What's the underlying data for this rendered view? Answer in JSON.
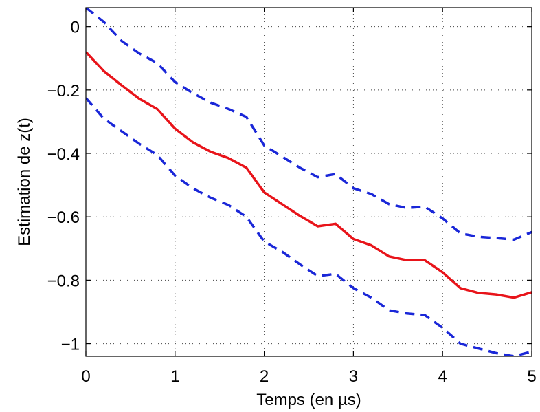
{
  "chart_data": {
    "type": "line",
    "xlabel": "Temps (en µs)",
    "ylabel": "Estimation de z(t)",
    "xlim": [
      0,
      5
    ],
    "ylim": [
      -1.04,
      0.06
    ],
    "grid": true,
    "xticks": [
      0,
      1,
      2,
      3,
      4,
      5
    ],
    "xtick_labels": [
      "0",
      "1",
      "2",
      "3",
      "4",
      "5"
    ],
    "yticks": [
      0,
      -0.2,
      -0.4,
      -0.6,
      -0.8,
      -1
    ],
    "ytick_labels": [
      "0",
      "−0.2",
      "−0.4",
      "−0.6",
      "−0.8",
      "−1"
    ],
    "x": [
      0,
      0.2,
      0.4,
      0.6,
      0.8,
      1.0,
      1.2,
      1.4,
      1.6,
      1.8,
      2.0,
      2.2,
      2.4,
      2.6,
      2.8,
      3.0,
      3.2,
      3.4,
      3.6,
      3.8,
      4.0,
      4.2,
      4.4,
      4.6,
      4.8,
      5.0
    ],
    "series": [
      {
        "style": "solid",
        "color": "#e8141a",
        "values": [
          -0.08,
          -0.14,
          -0.185,
          -0.228,
          -0.26,
          -0.322,
          -0.365,
          -0.395,
          -0.415,
          -0.445,
          -0.523,
          -0.56,
          -0.597,
          -0.63,
          -0.622,
          -0.67,
          -0.69,
          -0.725,
          -0.737,
          -0.737,
          -0.775,
          -0.825,
          -0.84,
          -0.845,
          -0.855,
          -0.838
        ]
      },
      {
        "style": "dashed",
        "color": "#1a27d8",
        "values": [
          0.06,
          0.015,
          -0.045,
          -0.085,
          -0.115,
          -0.175,
          -0.21,
          -0.24,
          -0.26,
          -0.285,
          -0.375,
          -0.41,
          -0.445,
          -0.475,
          -0.465,
          -0.51,
          -0.528,
          -0.56,
          -0.572,
          -0.568,
          -0.605,
          -0.652,
          -0.663,
          -0.667,
          -0.672,
          -0.648
        ]
      },
      {
        "style": "dashed",
        "color": "#1a27d8",
        "values": [
          -0.225,
          -0.29,
          -0.33,
          -0.37,
          -0.405,
          -0.47,
          -0.51,
          -0.54,
          -0.563,
          -0.6,
          -0.678,
          -0.71,
          -0.75,
          -0.787,
          -0.78,
          -0.825,
          -0.855,
          -0.895,
          -0.905,
          -0.91,
          -0.95,
          -1.0,
          -1.015,
          -1.03,
          -1.04,
          -1.025
        ]
      }
    ]
  }
}
